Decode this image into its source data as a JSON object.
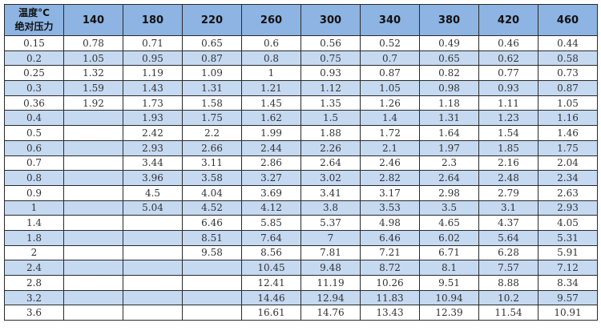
{
  "table": {
    "corner_label_line1": "温度°C",
    "corner_label_line2": "绝对压力",
    "columns": [
      "140",
      "180",
      "220",
      "260",
      "300",
      "340",
      "380",
      "420",
      "460"
    ],
    "rows": [
      [
        "0.15",
        "0.78",
        "0.71",
        "0.65",
        "0.6",
        "0.56",
        "0.52",
        "0.49",
        "0.46",
        "0.44"
      ],
      [
        "0.2",
        "1.05",
        "0.95",
        "0.87",
        "0.8",
        "0.75",
        "0.7",
        "0.65",
        "0.62",
        "0.58"
      ],
      [
        "0.25",
        "1.32",
        "1.19",
        "1.09",
        "1",
        "0.93",
        "0.87",
        "0.82",
        "0.77",
        "0.73"
      ],
      [
        "0.3",
        "1.59",
        "1.43",
        "1.31",
        "1.21",
        "1.12",
        "1.05",
        "0.98",
        "0.93",
        "0.87"
      ],
      [
        "0.36",
        "1.92",
        "1.73",
        "1.58",
        "1.45",
        "1.35",
        "1.26",
        "1.18",
        "1.11",
        "1.05"
      ],
      [
        "0.4",
        "",
        "1.93",
        "1.75",
        "1.62",
        "1.5",
        "1.4",
        "1.31",
        "1.23",
        "1.16"
      ],
      [
        "0.5",
        "",
        "2.42",
        "2.2",
        "1.99",
        "1.88",
        "1.72",
        "1.64",
        "1.54",
        "1.46"
      ],
      [
        "0.6",
        "",
        "2.93",
        "2.66",
        "2.44",
        "2.26",
        "2.1",
        "1.97",
        "1.85",
        "1.75"
      ],
      [
        "0.7",
        "",
        "3.44",
        "3.11",
        "2.86",
        "2.64",
        "2.46",
        "2.3",
        "2.16",
        "2.04"
      ],
      [
        "0.8",
        "",
        "3.96",
        "3.58",
        "3.27",
        "3.02",
        "2.82",
        "2.64",
        "2.48",
        "2.34"
      ],
      [
        "0.9",
        "",
        "4.5",
        "4.04",
        "3.69",
        "3.41",
        "3.17",
        "2.98",
        "2.79",
        "2.63"
      ],
      [
        "1",
        "",
        "5.04",
        "4.52",
        "4.12",
        "3.8",
        "3.53",
        "3.5",
        "3.1",
        "2.93"
      ],
      [
        "1.4",
        "",
        "",
        "6.46",
        "5.85",
        "5.37",
        "4.98",
        "4.65",
        "4.37",
        "4.05"
      ],
      [
        "1.8",
        "",
        "",
        "8.51",
        "7.64",
        "7",
        "6.46",
        "6.02",
        "5.64",
        "5.31"
      ],
      [
        "2",
        "",
        "",
        "9.58",
        "8.56",
        "7.81",
        "7.21",
        "6.71",
        "6.28",
        "5.91"
      ],
      [
        "2.4",
        "",
        "",
        "",
        "10.45",
        "9.48",
        "8.72",
        "8.1",
        "7.57",
        "7.12"
      ],
      [
        "2.8",
        "",
        "",
        "",
        "12.41",
        "11.19",
        "10.26",
        "9.51",
        "8.88",
        "8.34"
      ],
      [
        "3.2",
        "",
        "",
        "",
        "14.46",
        "12.94",
        "11.83",
        "10.94",
        "10.2",
        "9.57"
      ],
      [
        "3.6",
        "",
        "",
        "",
        "16.61",
        "14.76",
        "13.43",
        "12.39",
        "11.54",
        "10.91"
      ]
    ]
  },
  "colors": {
    "header_bg": "#8db4e2",
    "alt_row_bg": "#c5d9f1",
    "border": "#2a2a2a"
  }
}
